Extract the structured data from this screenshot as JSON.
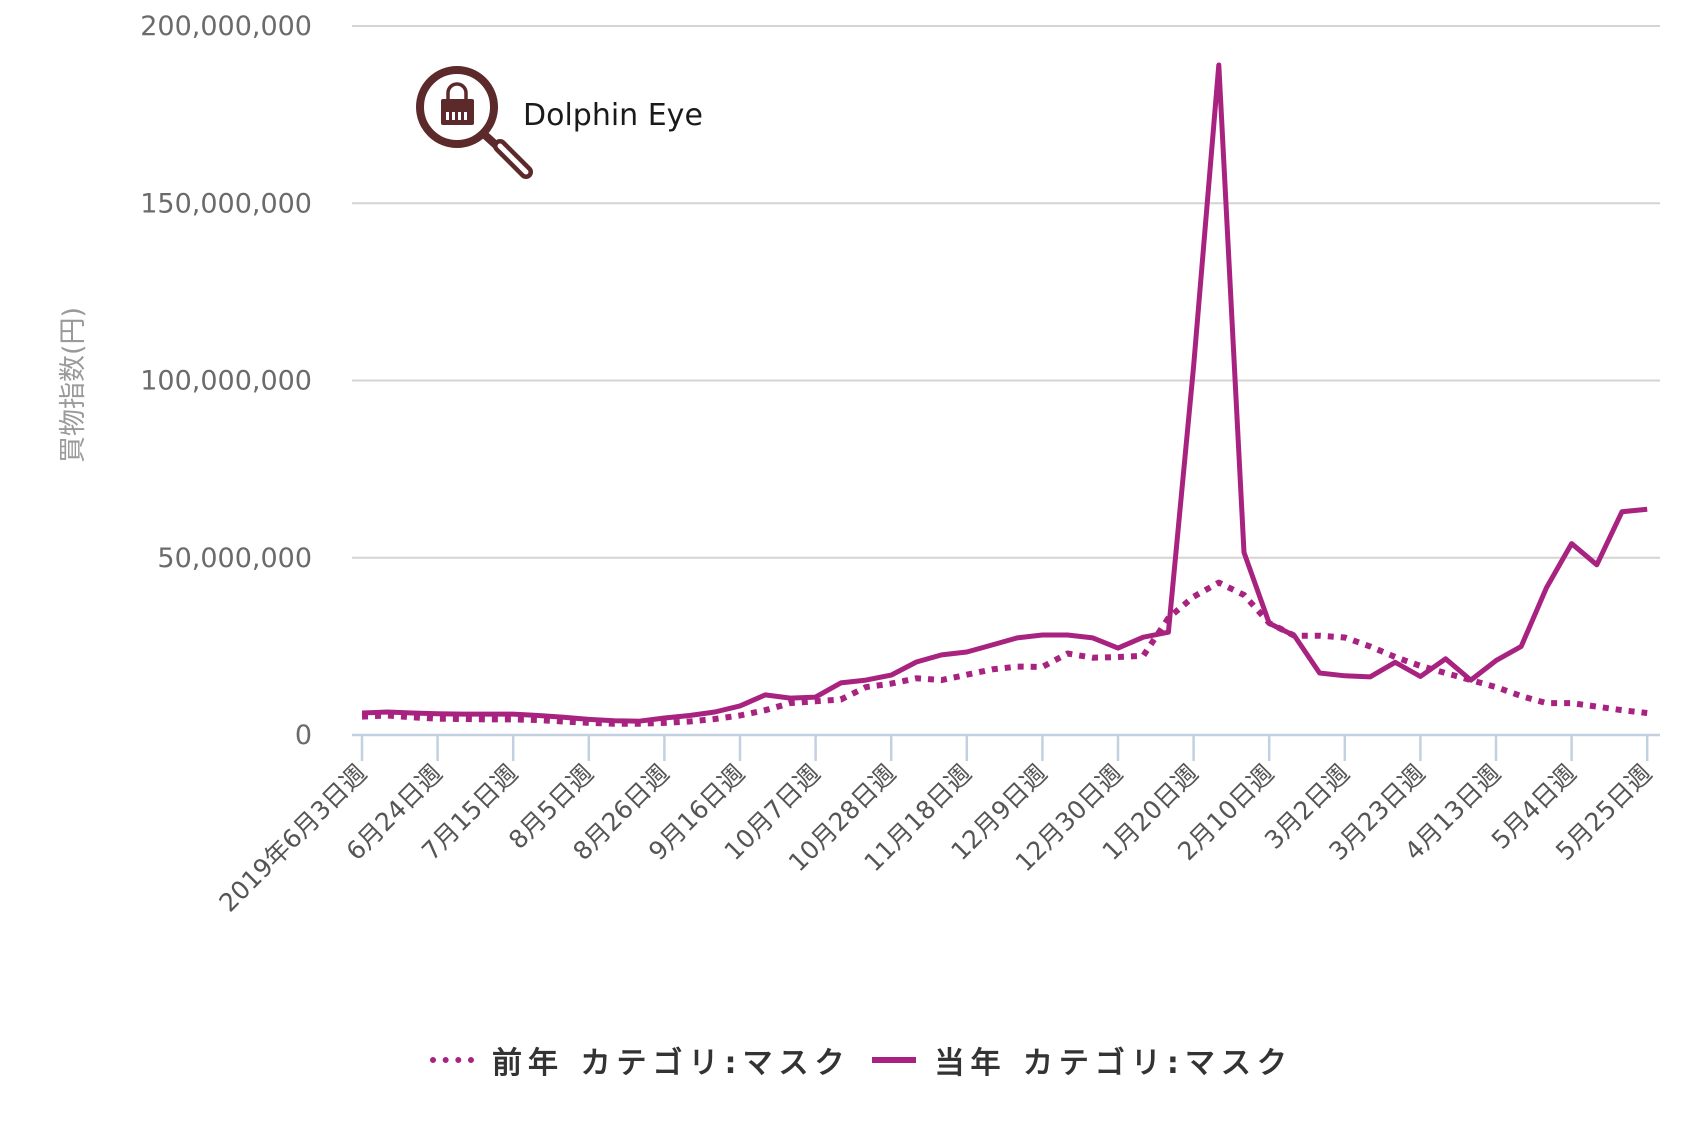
{
  "brand": {
    "name": "Dolphin Eye",
    "logo_icon": "magnifier-shopping-bag-icon",
    "color": "#5c2a2a"
  },
  "colors": {
    "series": "#a8237f",
    "grid": "#d4d4d4",
    "axis": "#c3d0e0",
    "tick_text": "#6b6b6b"
  },
  "chart_data": {
    "type": "line",
    "title": "",
    "xlabel": "",
    "ylabel": "買物指数(円)",
    "ylim": [
      0,
      200000000
    ],
    "yticks": [
      0,
      50000000,
      100000000,
      150000000,
      200000000
    ],
    "ytick_labels": [
      "0",
      "50,000,000",
      "100,000,000",
      "150,000,000",
      "200,000,000"
    ],
    "grid": true,
    "legend_position": "bottom",
    "x_tick_every_weeks": 3,
    "x_tick_labels": [
      "2019年6月3日週",
      "6月24日週",
      "7月15日週",
      "8月5日週",
      "8月26日週",
      "9月16日週",
      "10月7日週",
      "10月28日週",
      "11月18日週",
      "12月9日週",
      "12月30日週",
      "1月20日週",
      "2月10日週",
      "3月2日週",
      "3月23日週",
      "4月13日週",
      "5月4日週",
      "5月25日週"
    ],
    "series": [
      {
        "name": "前年 カテゴリ:マスク",
        "style": "dotted",
        "values_millions": [
          5.2,
          5.5,
          5.0,
          4.6,
          4.5,
          4.4,
          4.4,
          4.2,
          3.8,
          3.4,
          3.2,
          3.2,
          3.4,
          3.8,
          4.5,
          5.5,
          7.0,
          9.0,
          9.5,
          10.0,
          13.5,
          14.5,
          16.0,
          15.5,
          17.0,
          18.5,
          19.3,
          19.2,
          23.0,
          21.8,
          22.0,
          22.3,
          33.0,
          39.0,
          43.0,
          39.5,
          31.6,
          28.0,
          28.0,
          27.5,
          25.0,
          22.0,
          19.5,
          17.5,
          15.5,
          13.5,
          11.0,
          9.0,
          9.0,
          8.0,
          7.0,
          6.2
        ]
      },
      {
        "name": "当年 カテゴリ:マスク",
        "style": "solid",
        "values_millions": [
          6.2,
          6.5,
          6.2,
          6.0,
          5.9,
          5.9,
          5.9,
          5.5,
          5.0,
          4.4,
          4.0,
          3.9,
          4.8,
          5.5,
          6.5,
          8.2,
          11.3,
          10.4,
          10.7,
          14.7,
          15.5,
          16.9,
          20.6,
          22.6,
          23.4,
          25.4,
          27.4,
          28.2,
          28.2,
          27.4,
          24.5,
          27.6,
          29.0,
          104.0,
          189.0,
          51.5,
          31.5,
          28.0,
          17.5,
          16.7,
          16.4,
          20.5,
          16.5,
          21.5,
          15.5,
          21.0,
          25.0,
          41.5,
          54.0,
          48.0,
          63.0,
          63.7
        ]
      }
    ]
  },
  "legend": {
    "items": [
      {
        "label": "前年 カテゴリ:マスク",
        "style": "dotted"
      },
      {
        "label": "当年 カテゴリ:マスク",
        "style": "solid"
      }
    ]
  }
}
